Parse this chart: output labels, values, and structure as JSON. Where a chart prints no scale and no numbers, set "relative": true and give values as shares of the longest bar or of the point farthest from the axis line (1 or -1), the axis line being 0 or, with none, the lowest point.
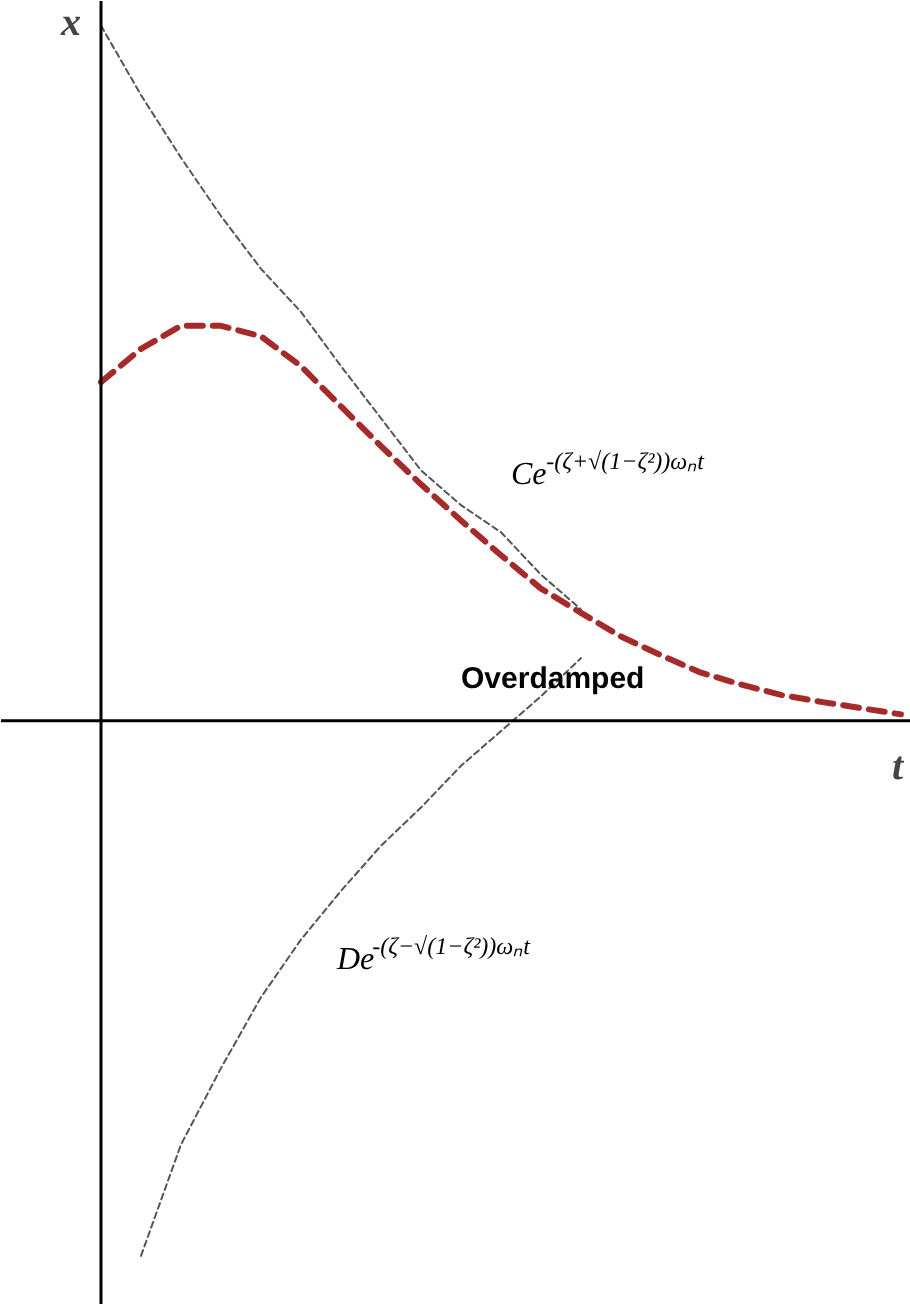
{
  "chart_data": {
    "type": "line",
    "relative": true,
    "xlabel": "t",
    "ylabel": "x",
    "tick_labels": false,
    "grid": false,
    "legend": false,
    "categories": [
      null,
      null,
      null,
      null,
      null,
      null,
      null,
      null,
      null,
      null,
      null,
      null,
      null,
      null,
      null,
      null,
      null,
      null,
      null,
      null,
      null
    ],
    "series": [
      {
        "name": "Overdamped",
        "color": "#a52a2a",
        "line_style": "dashed",
        "values": [
          0.487,
          0.535,
          0.568,
          0.568,
          0.553,
          0.51,
          0.452,
          0.395,
          0.34,
          0.288,
          0.238,
          0.19,
          0.155,
          0.121,
          0.094,
          0.069,
          0.052,
          0.037,
          0.027,
          0.018,
          0.009
        ]
      },
      {
        "name": "Ce$^{-(ζ+√(1−ζ²))ωₙt}$",
        "color": "#555555",
        "line_style": "dotted",
        "values": [
          1.0,
          0.9,
          0.81,
          0.726,
          0.65,
          0.588,
          0.51,
          0.435,
          0.36,
          0.31,
          0.271,
          0.21,
          0.16,
          null,
          null,
          null,
          null,
          null,
          null,
          null,
          null
        ]
      },
      {
        "name": "De$^{-(ζ−√(1−ζ²))ωₙt}$",
        "color": "#555555",
        "line_style": "dotted",
        "values": [
          null,
          -0.77,
          -0.61,
          -0.5,
          -0.398,
          -0.315,
          -0.245,
          -0.18,
          -0.125,
          -0.065,
          -0.015,
          0.035,
          0.09,
          null,
          null,
          null,
          null,
          null,
          null,
          null,
          null
        ]
      }
    ]
  }
}
